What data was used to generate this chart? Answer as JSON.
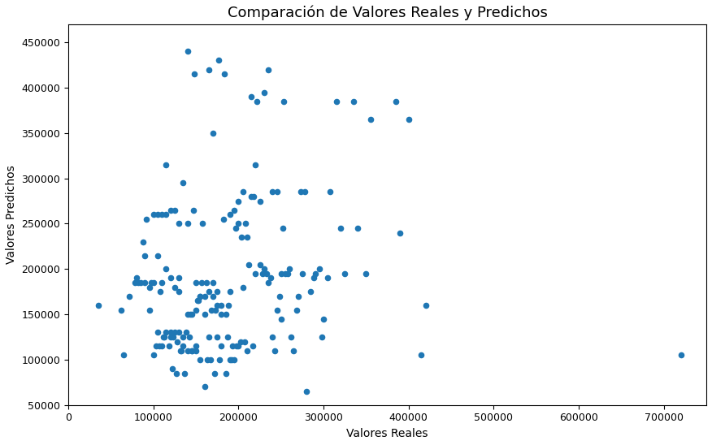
{
  "title": "Comparación de Valores Reales y Predichos",
  "xlabel": "Valores Reales",
  "ylabel": "Valores Predichos",
  "xlim": [
    0,
    750000
  ],
  "ylim": [
    50000,
    470000
  ],
  "xticks": [
    0,
    100000,
    200000,
    300000,
    400000,
    500000,
    600000,
    700000
  ],
  "yticks": [
    50000,
    100000,
    150000,
    200000,
    250000,
    300000,
    350000,
    400000,
    450000
  ],
  "dot_color": "#1f77b4",
  "dot_size": 20,
  "x": [
    35000,
    62000,
    65000,
    72000,
    78000,
    80000,
    82000,
    85000,
    88000,
    90000,
    90000,
    92000,
    95000,
    95000,
    97000,
    100000,
    100000,
    100000,
    103000,
    105000,
    105000,
    105000,
    107000,
    108000,
    110000,
    110000,
    110000,
    112000,
    113000,
    115000,
    115000,
    115000,
    115000,
    118000,
    120000,
    120000,
    120000,
    120000,
    122000,
    123000,
    125000,
    125000,
    125000,
    127000,
    128000,
    130000,
    130000,
    130000,
    130000,
    132000,
    133000,
    135000,
    135000,
    135000,
    137000,
    138000,
    140000,
    140000,
    140000,
    140000,
    142000,
    143000,
    145000,
    145000,
    145000,
    147000,
    148000,
    150000,
    150000,
    150000,
    150000,
    152000,
    153000,
    155000,
    155000,
    155000,
    157000,
    158000,
    160000,
    160000,
    160000,
    162000,
    163000,
    165000,
    165000,
    165000,
    167000,
    168000,
    170000,
    170000,
    170000,
    172000,
    173000,
    175000,
    175000,
    175000,
    177000,
    178000,
    180000,
    180000,
    180000,
    182000,
    183000,
    185000,
    185000,
    187000,
    188000,
    190000,
    190000,
    190000,
    192000,
    193000,
    195000,
    195000,
    197000,
    198000,
    200000,
    200000,
    200000,
    202000,
    203000,
    205000,
    205000,
    207000,
    208000,
    210000,
    210000,
    212000,
    215000,
    215000,
    217000,
    218000,
    220000,
    220000,
    222000,
    225000,
    225000,
    228000,
    230000,
    230000,
    233000,
    235000,
    235000,
    238000,
    240000,
    240000,
    243000,
    245000,
    245000,
    248000,
    250000,
    250000,
    252000,
    253000,
    255000,
    258000,
    260000,
    262000,
    265000,
    268000,
    270000,
    273000,
    275000,
    278000,
    280000,
    285000,
    288000,
    290000,
    295000,
    298000,
    300000,
    305000,
    308000,
    315000,
    320000,
    325000,
    335000,
    340000,
    350000,
    355000,
    385000,
    390000,
    400000,
    415000,
    420000,
    720000
  ],
  "y": [
    160000,
    155000,
    105000,
    170000,
    185000,
    190000,
    185000,
    185000,
    230000,
    185000,
    215000,
    255000,
    155000,
    180000,
    185000,
    185000,
    260000,
    105000,
    115000,
    130000,
    215000,
    260000,
    115000,
    175000,
    185000,
    260000,
    115000,
    125000,
    125000,
    130000,
    260000,
    200000,
    315000,
    115000,
    125000,
    130000,
    190000,
    265000,
    90000,
    125000,
    130000,
    180000,
    265000,
    85000,
    120000,
    130000,
    175000,
    190000,
    250000,
    110000,
    110000,
    115000,
    125000,
    295000,
    85000,
    130000,
    150000,
    250000,
    440000,
    110000,
    125000,
    150000,
    110000,
    110000,
    150000,
    265000,
    415000,
    110000,
    115000,
    155000,
    185000,
    165000,
    165000,
    170000,
    100000,
    170000,
    185000,
    250000,
    70000,
    150000,
    170000,
    185000,
    100000,
    125000,
    175000,
    420000,
    100000,
    155000,
    170000,
    185000,
    350000,
    85000,
    155000,
    175000,
    125000,
    160000,
    430000,
    100000,
    160000,
    115000,
    150000,
    255000,
    415000,
    85000,
    150000,
    125000,
    160000,
    100000,
    175000,
    260000,
    100000,
    115000,
    265000,
    100000,
    245000,
    115000,
    275000,
    115000,
    250000,
    120000,
    235000,
    180000,
    285000,
    120000,
    250000,
    110000,
    235000,
    205000,
    280000,
    390000,
    115000,
    280000,
    195000,
    315000,
    385000,
    205000,
    275000,
    195000,
    200000,
    395000,
    195000,
    185000,
    420000,
    190000,
    125000,
    285000,
    110000,
    155000,
    285000,
    170000,
    145000,
    195000,
    245000,
    385000,
    195000,
    195000,
    200000,
    125000,
    110000,
    155000,
    170000,
    285000,
    195000,
    285000,
    65000,
    175000,
    190000,
    195000,
    200000,
    125000,
    145000,
    190000,
    285000,
    385000,
    245000,
    195000,
    385000,
    245000,
    195000,
    365000,
    385000,
    240000,
    365000,
    105000,
    160000,
    105000
  ]
}
